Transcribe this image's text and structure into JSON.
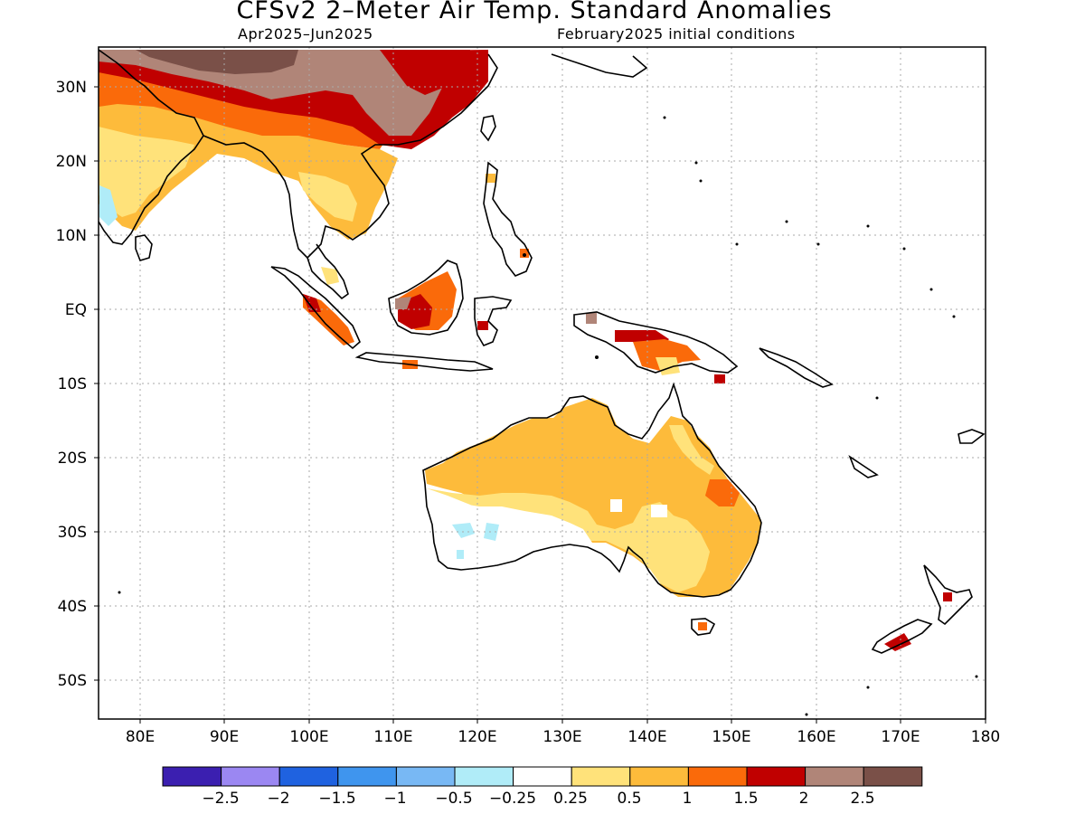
{
  "title": "CFSv2 2–Meter Air Temp. Standard Anomalies",
  "subtitle_left": "Apr2025–Jun2025",
  "subtitle_right": "February2025 initial conditions",
  "lon_ticks": [
    "80E",
    "90E",
    "100E",
    "110E",
    "120E",
    "130E",
    "140E",
    "150E",
    "160E",
    "170E",
    "180"
  ],
  "lat_ticks": [
    "30N",
    "20N",
    "10N",
    "EQ",
    "10S",
    "20S",
    "30S",
    "40S",
    "50S"
  ],
  "colorbar": {
    "colors": [
      "#3b1fb0",
      "#9b87f2",
      "#1f62e0",
      "#3f95ee",
      "#78b8f4",
      "#b0ecf8",
      "#ffffff",
      "#ffe27a",
      "#fdbb3b",
      "#fa6a0a",
      "#c00000",
      "#b08578",
      "#7a5048"
    ],
    "labels": [
      "−2.5",
      "−2",
      "−1.5",
      "−1",
      "−0.5",
      "−0.25",
      "0.25",
      "0.5",
      "1",
      "1.5",
      "2",
      "2.5"
    ]
  },
  "chart_data": {
    "type": "heatmap",
    "variable": "2-meter air temperature standard anomaly",
    "lon_range": [
      75,
      180
    ],
    "lat_range": [
      -55,
      35
    ],
    "categories": [
      "< -2.5",
      "-2.5 to -2",
      "-2 to -1.5",
      "-1.5 to -1",
      "-1 to -0.5",
      "-0.5 to -0.25",
      "-0.25 to 0.25",
      "0.25 to 0.5",
      "0.5 to 1",
      "1 to 1.5",
      "1.5 to 2",
      "2 to 2.5",
      "> 2.5"
    ],
    "regions": [
      {
        "area": "Tibetan Plateau / southwest China",
        "anomaly": "> 2.5"
      },
      {
        "area": "Central and eastern China",
        "anomaly": "2 to 2.5"
      },
      {
        "area": "Southern China / Himalayan foothills",
        "anomaly": "1.5 to 2"
      },
      {
        "area": "Northern India",
        "anomaly": "1 to 1.5"
      },
      {
        "area": "Central India",
        "anomaly": "0.5 to 1"
      },
      {
        "area": "Indochina",
        "anomaly": "0.25 to 1"
      },
      {
        "area": "Western India coast",
        "anomaly": "-0.5 to -0.25"
      },
      {
        "area": "Borneo",
        "anomaly": "1.5 to 2"
      },
      {
        "area": "Sumatra",
        "anomaly": "1 to 2"
      },
      {
        "area": "New Guinea",
        "anomaly": "1 to 2"
      },
      {
        "area": "Northern and central Australia",
        "anomaly": "0.5 to 1"
      },
      {
        "area": "Eastern Australia",
        "anomaly": "0.5 to 1.5"
      },
      {
        "area": "Southeastern Australia",
        "anomaly": "0.25 to 0.5"
      },
      {
        "area": "Southwestern Australia",
        "anomaly": "-0.25 to 0.25"
      },
      {
        "area": "Western Australia interior patches",
        "anomaly": "-0.5 to -0.25"
      },
      {
        "area": "New Zealand South Island",
        "anomaly": "1.5 to 2"
      }
    ]
  }
}
